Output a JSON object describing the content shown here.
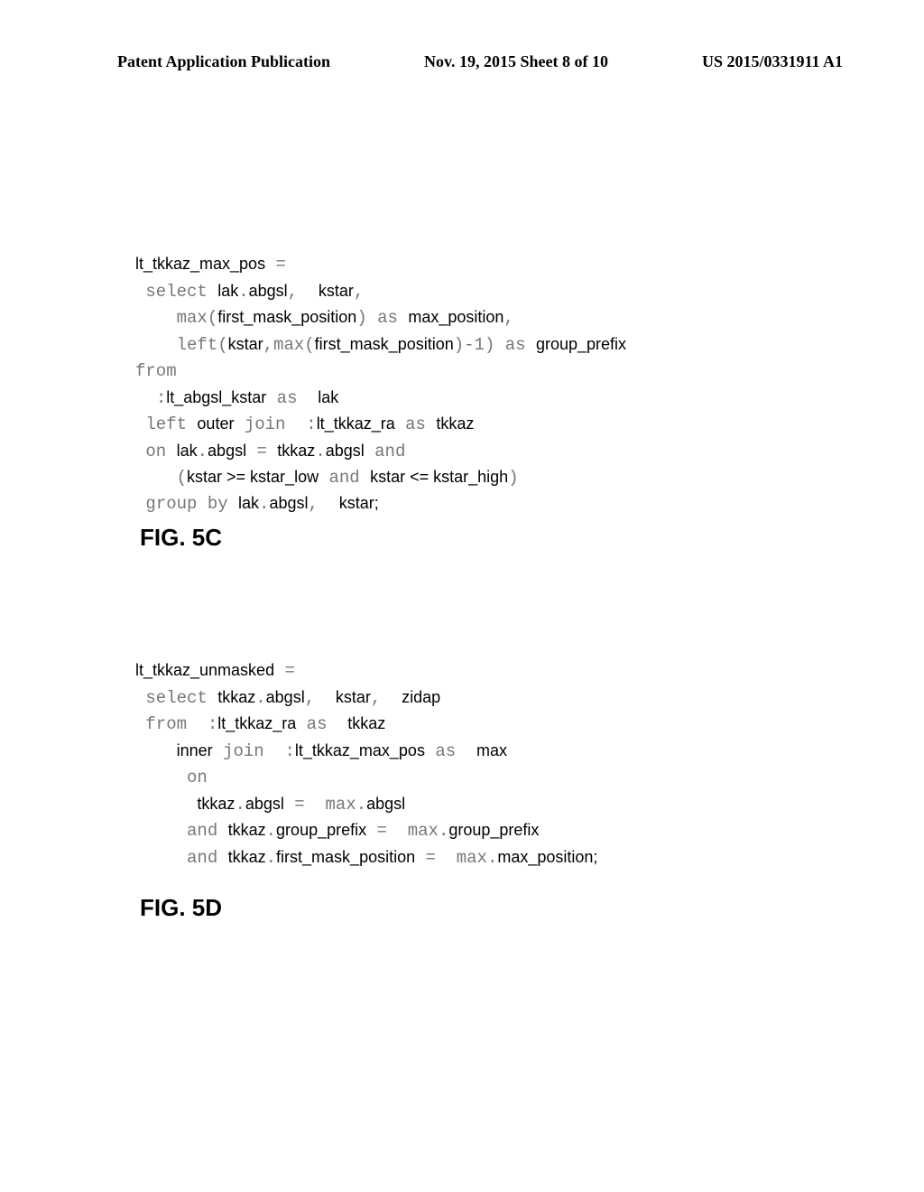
{
  "header": {
    "left": "Patent Application Publication",
    "center": "Nov. 19, 2015  Sheet 8 of 10",
    "right": "US 2015/0331911 A1"
  },
  "block1": {
    "l1_id1": "lt_tkkaz_max_pos",
    "l1_eq": " =",
    "l2_kw": " select ",
    "l2_id1": "lak",
    "l2_dot1": ".",
    "l2_id2": "abgsl",
    "l2_c1": ",  ",
    "l2_id3": "kstar",
    "l2_c2": ",",
    "l3_pad": "    ",
    "l3_kw1": "max",
    "l3_p1": "(",
    "l3_id1": "first_mask_position",
    "l3_p2": ") ",
    "l3_kw2": "as ",
    "l3_id2": "max_position",
    "l3_c": ",",
    "l4_pad": "    ",
    "l4_kw1": "left",
    "l4_p1": "(",
    "l4_id1": "kstar",
    "l4_c1": ",",
    "l4_kw2": "max",
    "l4_p2": "(",
    "l4_id2": "first_mask_position",
    "l4_p3": ")-1) ",
    "l4_kw3": "as ",
    "l4_id3": "group_prefix",
    "l5_kw": "from",
    "l6_pad": "  ",
    "l6_kw1": ":",
    "l6_id1": "lt_abgsl_kstar",
    "l6_kw2": " as  ",
    "l6_id2": "lak",
    "l7_pad": " ",
    "l7_kw1": "left ",
    "l7_id1": "outer",
    "l7_kw2": " join  ",
    "l7_kw2b": ":",
    "l7_id2": "lt_tkkaz_ra",
    "l7_kw3": " as ",
    "l7_id3": "tkkaz",
    "l8_pad": " ",
    "l8_kw1": "on ",
    "l8_id1": "lak",
    "l8_dot1": ".",
    "l8_id2": "abgsl",
    "l8_kw2": " = ",
    "l8_id3": "tkkaz",
    "l8_dot2": ".",
    "l8_id4": "abgsl",
    "l8_kw3": " and",
    "l9_pad": "    ",
    "l9_p1": "(",
    "l9_id1": "kstar >= kstar_low",
    "l9_kw1": " and ",
    "l9_id2": "kstar <= kstar_high",
    "l9_p2": ")",
    "l10_pad": " ",
    "l10_kw1": "group by ",
    "l10_id1": "lak",
    "l10_dot": ".",
    "l10_id2": "abgsl",
    "l10_c": ",  ",
    "l10_id3": "kstar;"
  },
  "fig1": "FIG. 5C",
  "block2": {
    "l1_id": "lt_tkkaz_unmasked",
    "l1_eq": " =",
    "l2_pad": " ",
    "l2_kw": "select ",
    "l2_id1": "tkkaz",
    "l2_dot": ".",
    "l2_id2": "abgsl",
    "l2_c1": ",  ",
    "l2_id3": "kstar",
    "l2_c2": ",  ",
    "l2_id4": "zidap",
    "l3_pad": " ",
    "l3_kw1": "from  ",
    "l3_kw1b": ":",
    "l3_id1": "lt_tkkaz_ra",
    "l3_kw2": " as  ",
    "l3_id2": "tkkaz",
    "l4_pad": "    ",
    "l4_id1": "inner",
    "l4_kw1": " join  ",
    "l4_kw1b": ":",
    "l4_id2": "lt_tkkaz_max_pos",
    "l4_kw2": " as  ",
    "l4_id3": "max",
    "l5_pad": "     ",
    "l5_kw": "on",
    "l6_pad": "      ",
    "l6_id1": "tkkaz",
    "l6_dot1": ".",
    "l6_id2": "abgsl",
    "l6_kw1": " =  ",
    "l6_kw2": "max",
    "l6_dot2": ".",
    "l6_id3": "abgsl",
    "l7_pad": "     ",
    "l7_kw1": "and ",
    "l7_id1": "tkkaz",
    "l7_dot1": ".",
    "l7_id2": "group_prefix",
    "l7_kw2": " =  ",
    "l7_kw3": "max",
    "l7_dot2": ".",
    "l7_id3": "group_prefix",
    "l8_pad": "     ",
    "l8_kw1": "and ",
    "l8_id1": "tkkaz",
    "l8_dot1": ".",
    "l8_id2": "first_mask_position",
    "l8_kw2": " =  ",
    "l8_kw3": "max",
    "l8_dot2": ".",
    "l8_id3": "max_position;"
  },
  "fig2": "FIG. 5D"
}
